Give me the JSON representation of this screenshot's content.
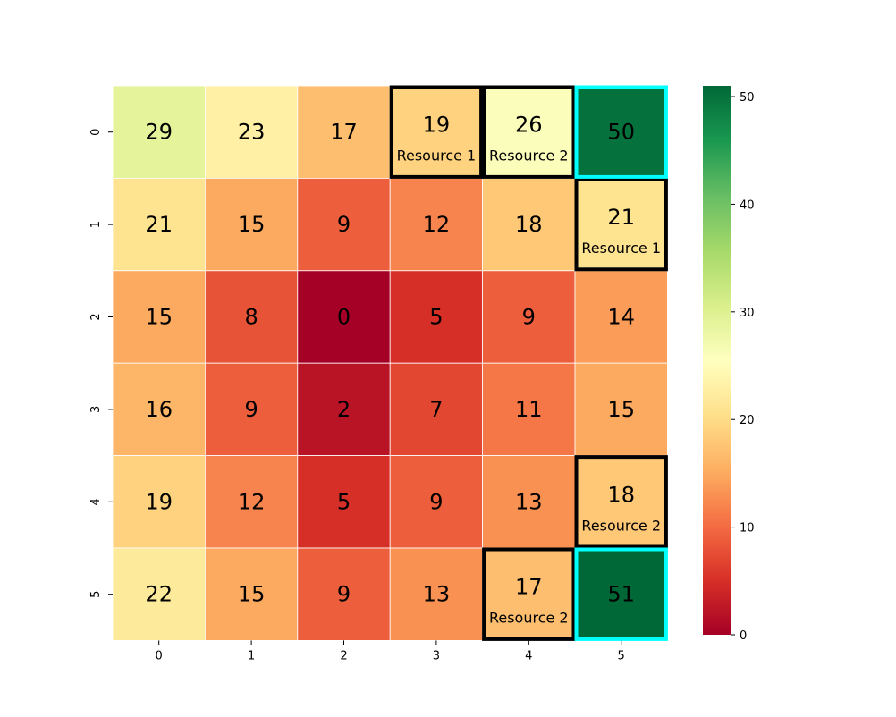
{
  "chart_data": {
    "type": "heatmap",
    "title": "",
    "xlabel": "",
    "ylabel": "",
    "x_ticks": [
      "0",
      "1",
      "2",
      "3",
      "4",
      "5"
    ],
    "y_ticks": [
      "0",
      "1",
      "2",
      "3",
      "4",
      "5"
    ],
    "values": [
      [
        29,
        23,
        17,
        19,
        26,
        50
      ],
      [
        21,
        15,
        9,
        12,
        18,
        21
      ],
      [
        15,
        8,
        0,
        5,
        9,
        14
      ],
      [
        16,
        9,
        2,
        7,
        11,
        15
      ],
      [
        19,
        12,
        5,
        9,
        13,
        18
      ],
      [
        22,
        15,
        9,
        13,
        17,
        51
      ]
    ],
    "value_range": [
      0,
      51
    ],
    "colormap": "RdYlGn",
    "colorbar": {
      "ticks": [
        "0",
        "10",
        "20",
        "30",
        "40",
        "50"
      ],
      "placement": "right"
    },
    "annotations": [
      {
        "row": 0,
        "col": 3,
        "label": "Resource 1",
        "outline_color": "#000000"
      },
      {
        "row": 0,
        "col": 4,
        "label": "Resource 2",
        "outline_color": "#000000"
      },
      {
        "row": 1,
        "col": 5,
        "label": "Resource 1",
        "outline_color": "#000000"
      },
      {
        "row": 4,
        "col": 5,
        "label": "Resource 2",
        "outline_color": "#000000"
      },
      {
        "row": 5,
        "col": 4,
        "label": "Resource 2",
        "outline_color": "#000000"
      }
    ],
    "highlighted_cells": [
      {
        "row": 0,
        "col": 5,
        "outline_color": "#00ffff"
      },
      {
        "row": 5,
        "col": 5,
        "outline_color": "#00ffff"
      }
    ]
  }
}
